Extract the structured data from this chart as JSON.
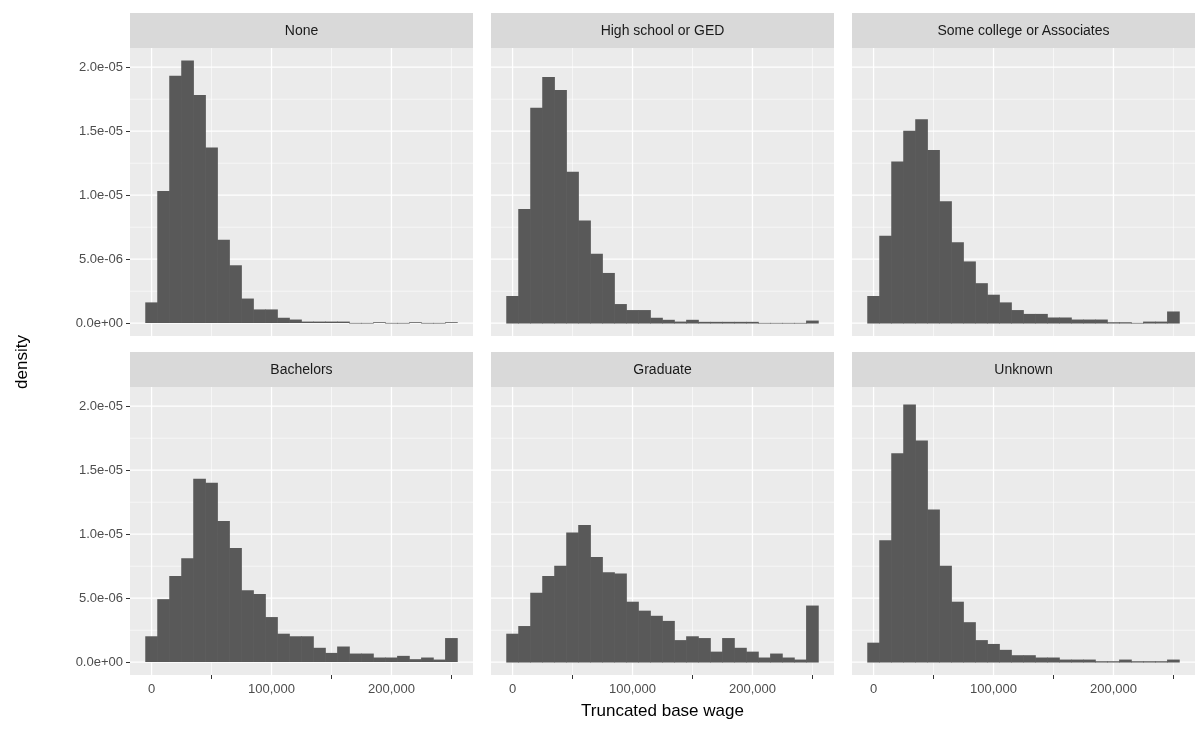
{
  "chart_data": [
    {
      "type": "histogram",
      "title": "None",
      "ylabel": "density",
      "color": "#595959",
      "grid": true,
      "tick_labels": "y",
      "bins": [
        -5000,
        5000,
        15000,
        25000,
        35000,
        45000,
        55000,
        65000,
        75000,
        85000,
        95000,
        105000,
        115000,
        125000,
        135000,
        145000,
        155000,
        165000,
        175000,
        185000,
        195000,
        205000,
        215000,
        225000,
        235000,
        245000,
        255000
      ],
      "values": [
        1.6e-06,
        1.03e-05,
        1.93e-05,
        2.05e-05,
        1.78e-05,
        1.37e-05,
        6.5e-06,
        4.5e-06,
        1.9e-06,
        1.05e-06,
        1.05e-06,
        4e-07,
        2.6e-07,
        1e-07,
        1e-07,
        1e-07,
        1e-07,
        0,
        0,
        5e-08,
        0,
        0,
        5e-08,
        0,
        0,
        5e-08
      ],
      "xlim": [
        -18000,
        268000
      ],
      "ylim": [
        -1e-06,
        2.15e-05
      ],
      "xticks": [
        0,
        100000,
        200000
      ],
      "yticks": [
        {
          "value": 0,
          "label": "0.0e+00"
        },
        {
          "value": 5e-06,
          "label": "5.0e-06"
        },
        {
          "value": 1e-05,
          "label": "1.0e-05"
        },
        {
          "value": 1.5e-05,
          "label": "1.5e-05"
        },
        {
          "value": 2e-05,
          "label": "2.0e-05"
        }
      ]
    },
    {
      "type": "histogram",
      "title": "High school or GED",
      "color": "#595959",
      "grid": true,
      "tick_labels": false,
      "bins": [
        -5000,
        5000,
        15000,
        25000,
        35000,
        45000,
        55000,
        65000,
        75000,
        85000,
        95000,
        105000,
        115000,
        125000,
        135000,
        145000,
        155000,
        165000,
        175000,
        185000,
        195000,
        205000,
        215000,
        225000,
        235000,
        245000,
        255000
      ],
      "values": [
        2.1e-06,
        8.9e-06,
        1.68e-05,
        1.92e-05,
        1.82e-05,
        1.18e-05,
        8e-06,
        5.4e-06,
        3.9e-06,
        1.47e-06,
        1e-06,
        1e-06,
        4e-07,
        2.4e-07,
        1e-07,
        2.4e-07,
        8e-08,
        8e-08,
        8e-08,
        8e-08,
        8e-08,
        0,
        0,
        0,
        0,
        1.8e-07
      ],
      "xlim": [
        -18000,
        268000
      ],
      "ylim": [
        -1e-06,
        2.15e-05
      ],
      "xticks": [
        0,
        100000,
        200000
      ],
      "yticks": [
        0,
        5e-06,
        1e-05,
        1.5e-05,
        2e-05
      ]
    },
    {
      "type": "histogram",
      "title": "Some college or Associates",
      "color": "#595959",
      "grid": true,
      "tick_labels": false,
      "bins": [
        -5000,
        5000,
        15000,
        25000,
        35000,
        45000,
        55000,
        65000,
        75000,
        85000,
        95000,
        105000,
        115000,
        125000,
        135000,
        145000,
        155000,
        165000,
        175000,
        185000,
        195000,
        205000,
        215000,
        225000,
        235000,
        245000,
        255000
      ],
      "values": [
        2.1e-06,
        6.8e-06,
        1.26e-05,
        1.5e-05,
        1.59e-05,
        1.35e-05,
        9.5e-06,
        6.3e-06,
        4.8e-06,
        3.1e-06,
        2.2e-06,
        1.6e-06,
        1e-06,
        7e-07,
        7e-07,
        4.2e-07,
        4.2e-07,
        2.6e-07,
        2.6e-07,
        2.6e-07,
        5e-08,
        5e-08,
        0,
        1e-07,
        1e-07,
        8.9e-07
      ],
      "xlim": [
        -18000,
        268000
      ],
      "ylim": [
        -1e-06,
        2.15e-05
      ],
      "xticks": [
        0,
        100000,
        200000
      ],
      "yticks": [
        0,
        5e-06,
        1e-05,
        1.5e-05,
        2e-05
      ]
    },
    {
      "type": "histogram",
      "title": "Bachelors",
      "color": "#595959",
      "grid": true,
      "bins": [
        -5000,
        5000,
        15000,
        25000,
        35000,
        45000,
        55000,
        65000,
        75000,
        85000,
        95000,
        105000,
        115000,
        125000,
        135000,
        145000,
        155000,
        165000,
        175000,
        185000,
        195000,
        205000,
        215000,
        225000,
        235000,
        245000,
        255000
      ],
      "values": [
        2e-06,
        4.9e-06,
        6.7e-06,
        8.1e-06,
        1.43e-05,
        1.4e-05,
        1.1e-05,
        8.9e-06,
        5.6e-06,
        5.3e-06,
        3.5e-06,
        2.2e-06,
        2e-06,
        2e-06,
        1.1e-06,
        7e-07,
        1.2e-06,
        6.5e-07,
        6.5e-07,
        3.4e-07,
        3.4e-07,
        4.7e-07,
        2.1e-07,
        3.4e-07,
        1.8e-07,
        1.86e-06
      ],
      "xlim": [
        -18000,
        268000
      ],
      "ylim": [
        -1e-06,
        2.15e-05
      ],
      "xticks": [
        {
          "value": 0,
          "label": "0"
        },
        {
          "value": 100000,
          "label": "100,000"
        },
        {
          "value": 200000,
          "label": "200,000"
        }
      ],
      "yticks": [
        {
          "value": 0,
          "label": "0.0e+00"
        },
        {
          "value": 5e-06,
          "label": "5.0e-06"
        },
        {
          "value": 1e-05,
          "label": "1.0e-05"
        },
        {
          "value": 1.5e-05,
          "label": "1.5e-05"
        },
        {
          "value": 2e-05,
          "label": "2.0e-05"
        }
      ]
    },
    {
      "type": "histogram",
      "title": "Graduate",
      "xlabel": "Truncated base wage",
      "color": "#595959",
      "grid": true,
      "tick_labels": "x",
      "bins": [
        -5000,
        5000,
        15000,
        25000,
        35000,
        45000,
        55000,
        65000,
        75000,
        85000,
        95000,
        105000,
        115000,
        125000,
        135000,
        145000,
        155000,
        165000,
        175000,
        185000,
        195000,
        205000,
        215000,
        225000,
        235000,
        245000,
        255000
      ],
      "values": [
        2.2e-06,
        2.8e-06,
        5.4e-06,
        6.7e-06,
        7.5e-06,
        1.01e-05,
        1.07e-05,
        8.2e-06,
        7e-06,
        6.9e-06,
        4.7e-06,
        4e-06,
        3.6e-06,
        3.2e-06,
        1.7e-06,
        2e-06,
        1.86e-06,
        8e-07,
        1.86e-06,
        1.1e-06,
        8e-07,
        3.4e-07,
        6.5e-07,
        3.4e-07,
        1.8e-07,
        4.4e-06
      ],
      "xlim": [
        -18000,
        268000
      ],
      "ylim": [
        -1e-06,
        2.15e-05
      ],
      "xticks": [
        {
          "value": 0,
          "label": "0"
        },
        {
          "value": 100000,
          "label": "100,000"
        },
        {
          "value": 200000,
          "label": "200,000"
        }
      ],
      "yticks": [
        0,
        5e-06,
        1e-05,
        1.5e-05,
        2e-05
      ]
    },
    {
      "type": "histogram",
      "title": "Unknown",
      "color": "#595959",
      "grid": true,
      "tick_labels": "x",
      "bins": [
        -5000,
        5000,
        15000,
        25000,
        35000,
        45000,
        55000,
        65000,
        75000,
        85000,
        95000,
        105000,
        115000,
        125000,
        135000,
        145000,
        155000,
        165000,
        175000,
        185000,
        195000,
        205000,
        215000,
        225000,
        235000,
        245000,
        255000
      ],
      "values": [
        1.5e-06,
        9.5e-06,
        1.63e-05,
        2.01e-05,
        1.73e-05,
        1.19e-05,
        7.5e-06,
        4.7e-06,
        3.1e-06,
        1.7e-06,
        1.4e-06,
        9.4e-07,
        5.2e-07,
        5.2e-07,
        3.4e-07,
        3.4e-07,
        1.8e-07,
        1.8e-07,
        1.8e-07,
        5e-08,
        5e-08,
        1.8e-07,
        5e-08,
        5e-08,
        5e-08,
        1.8e-07
      ],
      "xlim": [
        -18000,
        268000
      ],
      "ylim": [
        -1e-06,
        2.15e-05
      ],
      "xticks": [
        {
          "value": 0,
          "label": "0"
        },
        {
          "value": 100000,
          "label": "100,000"
        },
        {
          "value": 200000,
          "label": "200,000"
        }
      ],
      "yticks": [
        0,
        5e-06,
        1e-05,
        1.5e-05,
        2e-05
      ]
    }
  ]
}
